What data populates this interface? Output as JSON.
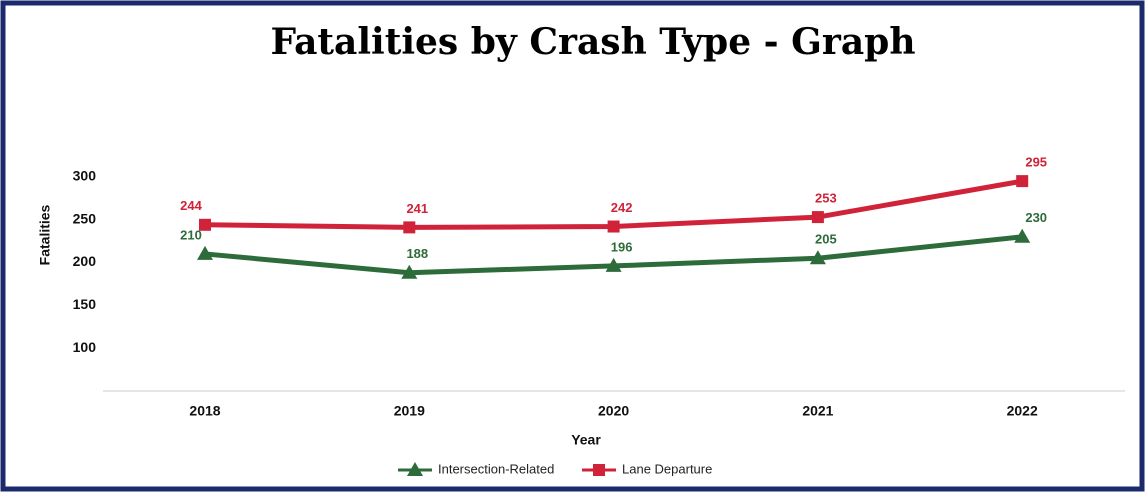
{
  "chart_data": {
    "type": "line",
    "title": "Fatalities by Crash Type - Graph",
    "x_label": "Year",
    "y_label": "Fatalities",
    "categories": [
      "2018",
      "2019",
      "2020",
      "2021",
      "2022"
    ],
    "series": [
      {
        "name": "Intersection-Related",
        "color": "#2e6b3a",
        "marker": "triangle",
        "values": [
          210,
          188,
          196,
          205,
          230
        ]
      },
      {
        "name": "Lane Departure",
        "color": "#d0233a",
        "marker": "square",
        "values": [
          244,
          241,
          242,
          253,
          295
        ]
      }
    ],
    "ylim": [
      50,
      350
    ],
    "yticks": [
      100,
      150,
      200,
      250,
      300
    ],
    "legend": "bottom"
  }
}
